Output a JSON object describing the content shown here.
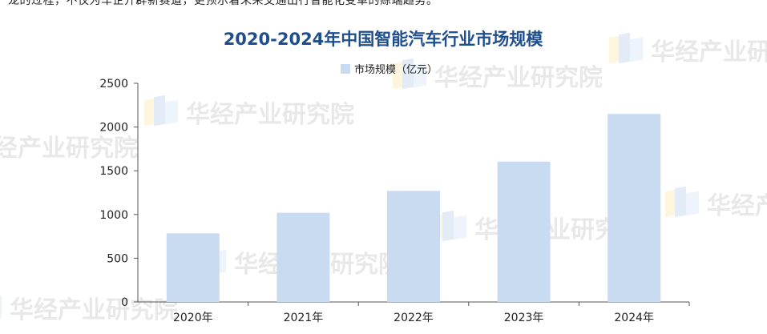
{
  "intro_text": "龙的过程，不仅为车企开辟新赛道，更预示着未来交通出行智能化变革的赊端趋势。",
  "watermark": {
    "text": "华经产业研究院",
    "colors": [
      "#f2c200",
      "#2f6fc0",
      "#7bb0e8"
    ]
  },
  "chart_data": {
    "type": "bar",
    "title": "2020-2024年中国智能汽车行业市场规模",
    "legend": {
      "label": "市场规模（亿元）",
      "position": "top-center"
    },
    "categories": [
      "2020年",
      "2021年",
      "2022年",
      "2023年",
      "2024年"
    ],
    "series": [
      {
        "name": "市场规模（亿元）",
        "values": [
          785,
          1020,
          1270,
          1605,
          2150
        ],
        "color": "#c9dbf0"
      }
    ],
    "ylim": [
      0,
      2500
    ],
    "yticks": [
      0,
      500,
      1000,
      1500,
      2000,
      2500
    ],
    "xlabel": "",
    "ylabel": "",
    "grid": false,
    "title_color": "#1f4e8c"
  }
}
